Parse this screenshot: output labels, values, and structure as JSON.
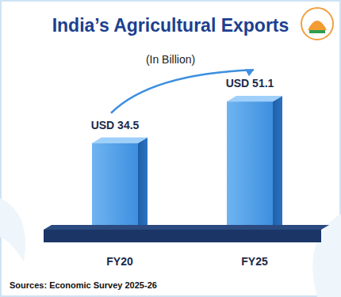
{
  "chart_data": {
    "type": "bar",
    "title": "India’s Agricultural Exports",
    "subtitle": "(In Billion)",
    "categories": [
      "FY20",
      "FY25"
    ],
    "values": [
      34.5,
      51.1
    ],
    "value_labels": [
      "USD 34.5",
      "USD 51.1"
    ],
    "color": "#3d8fe0",
    "ylim": [
      0,
      60
    ],
    "data_labels": true,
    "tick_labels": "x",
    "grid": false,
    "source": "Sources: Economic Survey 2025-26"
  }
}
